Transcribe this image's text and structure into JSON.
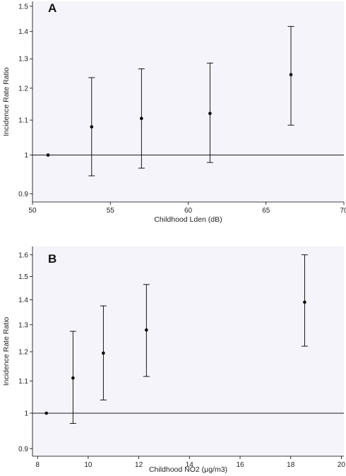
{
  "figure": {
    "background": "#ffffff",
    "plot_background": "#f4f4fa",
    "ink": "#000000"
  },
  "chart_data": [
    {
      "type": "scatter",
      "panel_label": "A",
      "xlabel": "Childhood Lden (dB)",
      "ylabel": "Incidence Rate Ratio",
      "xlim": [
        50,
        70
      ],
      "ylim": [
        0.88,
        1.52
      ],
      "y_scale": "log",
      "x_ticks": [
        50,
        55,
        60,
        65,
        70
      ],
      "x_tick_labels": [
        "50",
        "55",
        "60",
        "65",
        "70"
      ],
      "y_ticks": [
        0.9,
        1,
        1.1,
        1.2,
        1.3,
        1.4,
        1.5
      ],
      "y_tick_labels": [
        "0.9",
        "1",
        "1.1",
        "1.2",
        "1.3",
        "1.4",
        "1.5"
      ],
      "reference_line": 1,
      "grid": false,
      "points": [
        {
          "x": 51.0,
          "y": 1.0,
          "lower": null,
          "upper": null
        },
        {
          "x": 53.8,
          "y": 1.08,
          "lower": 0.945,
          "upper": 1.235
        },
        {
          "x": 57.0,
          "y": 1.105,
          "lower": 0.965,
          "upper": 1.265
        },
        {
          "x": 61.4,
          "y": 1.12,
          "lower": 0.98,
          "upper": 1.285
        },
        {
          "x": 66.6,
          "y": 1.245,
          "lower": 1.085,
          "upper": 1.42
        }
      ]
    },
    {
      "type": "scatter",
      "panel_label": "B",
      "xlabel": "Childhood NO2 (μg/m3)",
      "ylabel": "Incidence Rate Ratio",
      "xlim": [
        7.8,
        20.1
      ],
      "ylim": [
        0.88,
        1.64
      ],
      "y_scale": "log",
      "x_ticks": [
        8,
        10,
        12,
        14,
        16,
        18,
        20
      ],
      "x_tick_labels": [
        "8",
        "10",
        "12",
        "14",
        "16",
        "18",
        "20"
      ],
      "y_ticks": [
        0.9,
        1,
        1.1,
        1.2,
        1.3,
        1.4,
        1.5,
        1.6
      ],
      "y_tick_labels": [
        "0.9",
        "1",
        "1.1",
        "1.2",
        "1.3",
        "1.4",
        "1.5",
        "1.6"
      ],
      "reference_line": 1,
      "grid": false,
      "points": [
        {
          "x": 8.35,
          "y": 1.0,
          "lower": null,
          "upper": null
        },
        {
          "x": 9.4,
          "y": 1.11,
          "lower": 0.97,
          "upper": 1.275
        },
        {
          "x": 10.6,
          "y": 1.195,
          "lower": 1.04,
          "upper": 1.375
        },
        {
          "x": 12.3,
          "y": 1.28,
          "lower": 1.115,
          "upper": 1.465
        },
        {
          "x": 18.55,
          "y": 1.39,
          "lower": 1.22,
          "upper": 1.6
        }
      ]
    }
  ]
}
